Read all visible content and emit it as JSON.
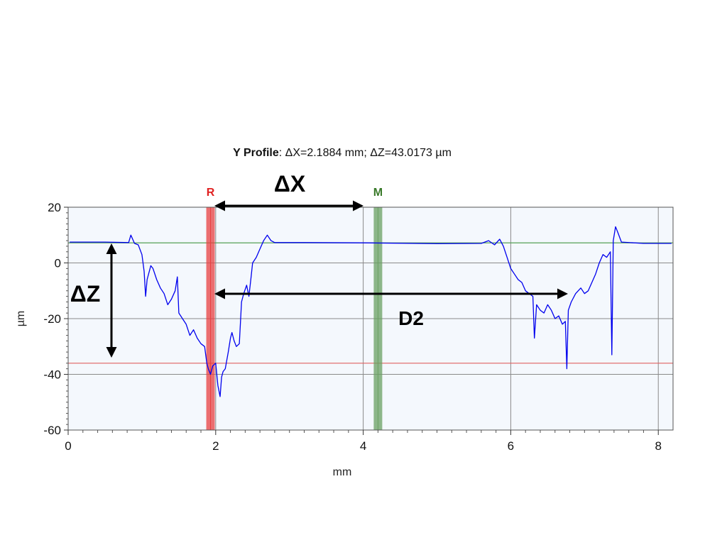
{
  "title": {
    "bold": "Y Profile",
    "rest": ": ΔX=2.1884 mm; ΔZ=43.0173 µm"
  },
  "chart_data": {
    "type": "line",
    "xlabel": "mm",
    "ylabel": "µm",
    "xlim": [
      0,
      8.2
    ],
    "ylim": [
      -60,
      20
    ],
    "x_ticks": [
      0,
      2,
      4,
      6,
      8
    ],
    "y_ticks": [
      20,
      0,
      -20,
      -40,
      -60
    ],
    "grid": true,
    "series": [
      {
        "color": "#0000ee",
        "points": [
          [
            0.02,
            7.5
          ],
          [
            0.5,
            7.5
          ],
          [
            0.82,
            7.3
          ],
          [
            0.85,
            10
          ],
          [
            0.9,
            7
          ],
          [
            0.95,
            6.5
          ],
          [
            1.0,
            3
          ],
          [
            1.03,
            -3
          ],
          [
            1.05,
            -12
          ],
          [
            1.07,
            -6
          ],
          [
            1.12,
            -1
          ],
          [
            1.15,
            -2
          ],
          [
            1.2,
            -6
          ],
          [
            1.25,
            -9
          ],
          [
            1.3,
            -11
          ],
          [
            1.35,
            -15
          ],
          [
            1.4,
            -13
          ],
          [
            1.45,
            -10
          ],
          [
            1.48,
            -5
          ],
          [
            1.5,
            -18
          ],
          [
            1.55,
            -20
          ],
          [
            1.6,
            -22
          ],
          [
            1.65,
            -26
          ],
          [
            1.7,
            -24
          ],
          [
            1.75,
            -27
          ],
          [
            1.8,
            -29
          ],
          [
            1.85,
            -30
          ],
          [
            1.88,
            -36
          ],
          [
            1.9,
            -38
          ],
          [
            1.93,
            -40
          ],
          [
            1.96,
            -37
          ],
          [
            2.0,
            -36
          ],
          [
            2.03,
            -44
          ],
          [
            2.06,
            -48
          ],
          [
            2.08,
            -41
          ],
          [
            2.1,
            -39
          ],
          [
            2.13,
            -38
          ],
          [
            2.17,
            -32
          ],
          [
            2.2,
            -27
          ],
          [
            2.22,
            -25
          ],
          [
            2.25,
            -28
          ],
          [
            2.28,
            -30
          ],
          [
            2.32,
            -29
          ],
          [
            2.35,
            -14
          ],
          [
            2.38,
            -11
          ],
          [
            2.42,
            -8
          ],
          [
            2.45,
            -12
          ],
          [
            2.48,
            -5
          ],
          [
            2.5,
            0
          ],
          [
            2.55,
            2
          ],
          [
            2.6,
            5
          ],
          [
            2.65,
            8
          ],
          [
            2.7,
            10
          ],
          [
            2.75,
            8
          ],
          [
            2.8,
            7.3
          ],
          [
            3.2,
            7.3
          ],
          [
            4.0,
            7.2
          ],
          [
            5.0,
            6.9
          ],
          [
            5.6,
            7.0
          ],
          [
            5.7,
            8
          ],
          [
            5.78,
            6.5
          ],
          [
            5.85,
            8.5
          ],
          [
            5.9,
            6
          ],
          [
            5.95,
            2
          ],
          [
            6.0,
            -2
          ],
          [
            6.05,
            -4
          ],
          [
            6.1,
            -6
          ],
          [
            6.15,
            -7
          ],
          [
            6.2,
            -10
          ],
          [
            6.25,
            -11
          ],
          [
            6.3,
            -12
          ],
          [
            6.32,
            -27
          ],
          [
            6.35,
            -15
          ],
          [
            6.4,
            -17
          ],
          [
            6.45,
            -18
          ],
          [
            6.5,
            -15
          ],
          [
            6.55,
            -17
          ],
          [
            6.6,
            -20
          ],
          [
            6.65,
            -19
          ],
          [
            6.7,
            -22
          ],
          [
            6.74,
            -21
          ],
          [
            6.76,
            -38
          ],
          [
            6.78,
            -17
          ],
          [
            6.82,
            -14
          ],
          [
            6.88,
            -11
          ],
          [
            6.95,
            -9
          ],
          [
            7.0,
            -11
          ],
          [
            7.05,
            -10
          ],
          [
            7.1,
            -7
          ],
          [
            7.15,
            -4
          ],
          [
            7.2,
            0
          ],
          [
            7.25,
            3
          ],
          [
            7.3,
            2
          ],
          [
            7.35,
            4
          ],
          [
            7.37,
            -33
          ],
          [
            7.39,
            8
          ],
          [
            7.42,
            13
          ],
          [
            7.45,
            11
          ],
          [
            7.5,
            7.5
          ],
          [
            7.8,
            7
          ],
          [
            8.18,
            7
          ]
        ]
      }
    ],
    "reference_lines": [
      {
        "y": 7.2,
        "color": "#55a055"
      },
      {
        "y": -36,
        "color": "#e06060"
      }
    ],
    "cursors": [
      {
        "label": "R",
        "x": 1.93,
        "color": "#e84040",
        "label_color": "#e02020"
      },
      {
        "label": "M",
        "x": 4.2,
        "color": "#6aa062",
        "label_color": "#3a7a2a"
      }
    ]
  },
  "annotations": {
    "dx_label": "ΔX",
    "dz_label": "ΔZ",
    "d2_label": "D2"
  }
}
